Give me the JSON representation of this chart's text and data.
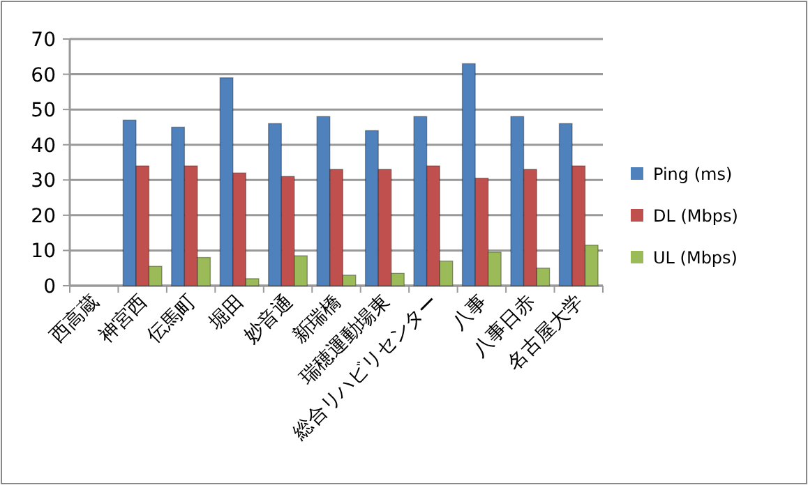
{
  "chart_data": {
    "type": "bar",
    "categories": [
      "西高蔵",
      "神宮西",
      "伝馬町",
      "堀田",
      "妙音通",
      "新瑞橋",
      "瑞穂運動場東",
      "総合リハビリセンター",
      "八事",
      "八事日赤",
      "名古屋大学"
    ],
    "series": [
      {
        "name": "Ping (ms)",
        "color": "#4f81bd",
        "values": [
          null,
          47,
          45,
          59,
          46,
          48,
          44,
          48,
          63,
          48,
          46
        ]
      },
      {
        "name": "DL (Mbps)",
        "color": "#c0504d",
        "values": [
          null,
          34,
          34,
          32,
          31,
          33,
          33,
          34,
          30.5,
          33,
          34
        ]
      },
      {
        "name": "UL (Mbps)",
        "color": "#9bbb59",
        "values": [
          null,
          5.5,
          8,
          2,
          8.5,
          3,
          3.5,
          7,
          9.5,
          5,
          11.5
        ]
      }
    ],
    "ylim": [
      0,
      70
    ],
    "yticks": [
      0,
      10,
      20,
      30,
      40,
      50,
      60,
      70
    ],
    "grid": "y",
    "legend": "right"
  }
}
